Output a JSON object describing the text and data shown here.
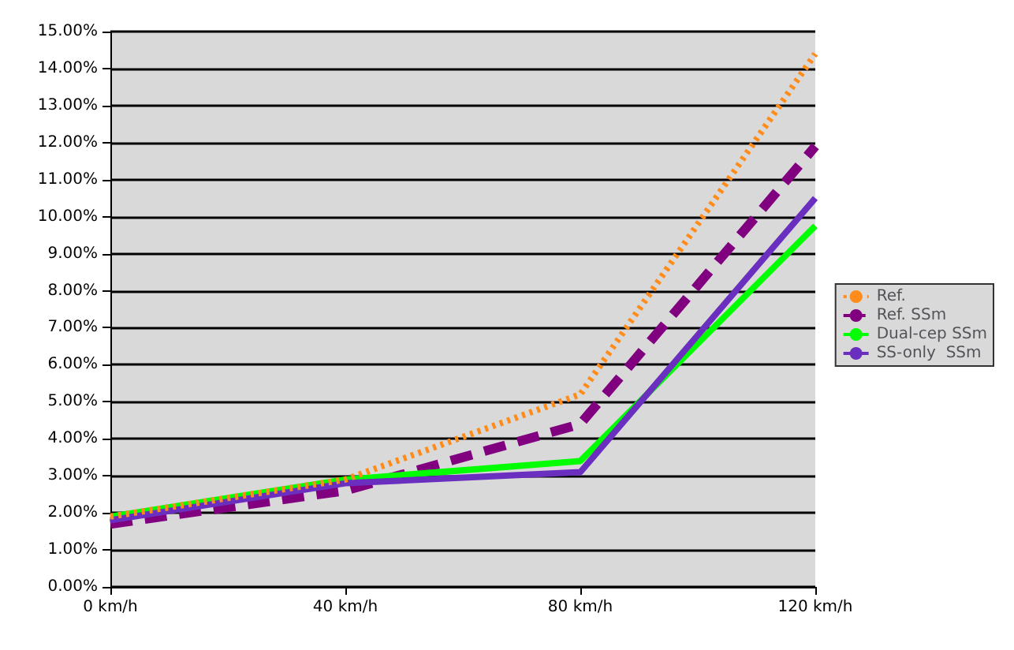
{
  "chart_data": {
    "type": "line",
    "categories": [
      "0 km/h",
      "40 km/h",
      "80 km/h",
      "120 km/h"
    ],
    "series": [
      {
        "name": "Ref.",
        "color": "#ff8c1a",
        "line_style": "dotted",
        "values": [
          1.9,
          2.9,
          5.2,
          14.4
        ]
      },
      {
        "name": "Ref. SSm",
        "color": "#800080",
        "line_style": "dashed",
        "values": [
          1.7,
          2.6,
          4.4,
          11.9
        ]
      },
      {
        "name": "Dual-cep SSm",
        "color": "#00ff00",
        "line_style": "solid",
        "values": [
          1.9,
          2.9,
          3.4,
          9.75
        ]
      },
      {
        "name": "SS-only  SSm",
        "color": "#6a2fbf",
        "line_style": "solid",
        "values": [
          1.8,
          2.8,
          3.1,
          10.5
        ]
      }
    ],
    "ylim": [
      0,
      15
    ],
    "yticks": [
      {
        "value": 0,
        "label": "0.00%"
      },
      {
        "value": 1,
        "label": "1.00%"
      },
      {
        "value": 2,
        "label": "2.00%"
      },
      {
        "value": 3,
        "label": "3.00%"
      },
      {
        "value": 4,
        "label": "4.00%"
      },
      {
        "value": 5,
        "label": "5.00%"
      },
      {
        "value": 6,
        "label": "6.00%"
      },
      {
        "value": 7,
        "label": "7.00%"
      },
      {
        "value": 8,
        "label": "8.00%"
      },
      {
        "value": 9,
        "label": "9.00%"
      },
      {
        "value": 10,
        "label": "10.00%"
      },
      {
        "value": 11,
        "label": "11.00%"
      },
      {
        "value": 12,
        "label": "12.00%"
      },
      {
        "value": 13,
        "label": "13.00%"
      },
      {
        "value": 14,
        "label": "14.00%"
      },
      {
        "value": 15,
        "label": "15.00%"
      }
    ],
    "grid": "y",
    "legend": "right",
    "marker": "none"
  }
}
